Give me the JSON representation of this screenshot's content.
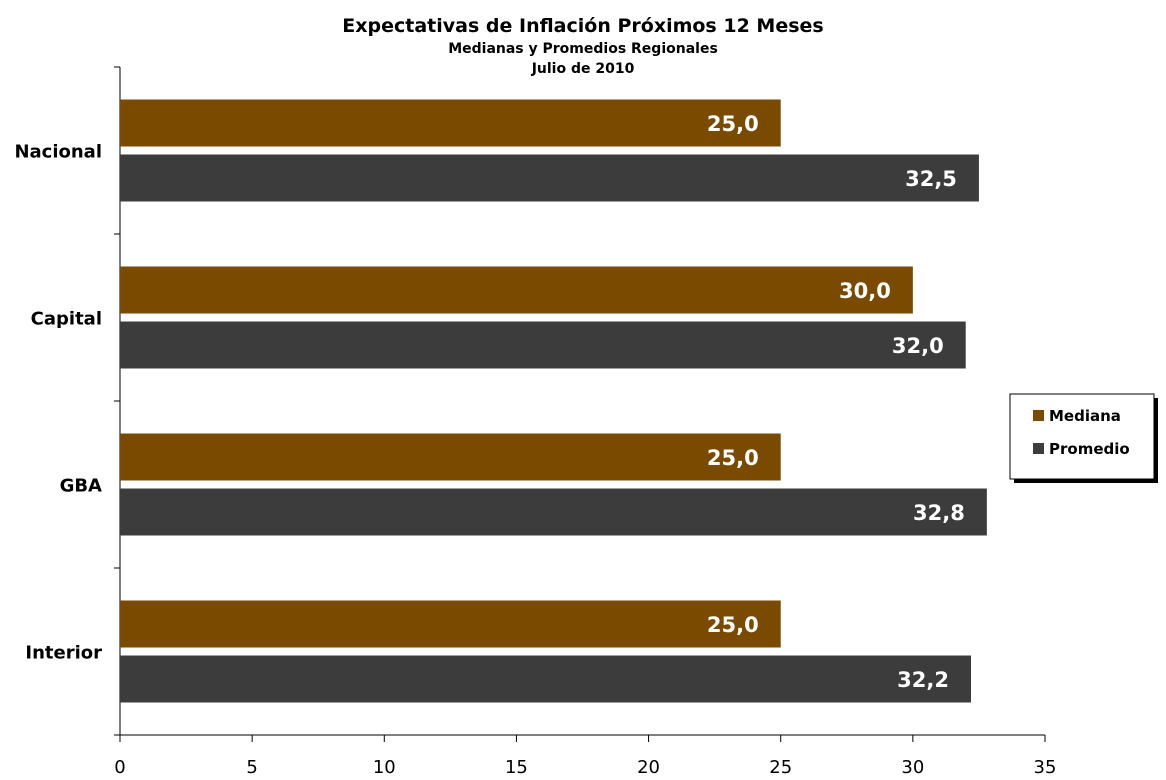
{
  "chart_data": {
    "type": "bar",
    "orientation": "horizontal",
    "title": "Expectativas de Inflación Próximos 12 Meses",
    "subtitle": "Medianas y Promedios Regionales",
    "subtitle2": "Julio de 2010",
    "categories": [
      "Nacional",
      "Capital",
      "GBA",
      "Interior"
    ],
    "series": [
      {
        "name": "Mediana",
        "color": "#7a4a00",
        "values": [
          25.0,
          30.0,
          25.0,
          25.0
        ],
        "labels": [
          "25,0",
          "30,0",
          "25,0",
          "25,0"
        ]
      },
      {
        "name": "Promedio",
        "color": "#3c3c3c",
        "values": [
          32.5,
          32.0,
          32.8,
          32.2
        ],
        "labels": [
          "32,5",
          "32,0",
          "32,8",
          "32,2"
        ]
      }
    ],
    "xlim": [
      0,
      35
    ],
    "xticks": [
      "0",
      "5",
      "10",
      "15",
      "20",
      "25",
      "30",
      "35"
    ],
    "grid": false,
    "legend_position": "right"
  }
}
